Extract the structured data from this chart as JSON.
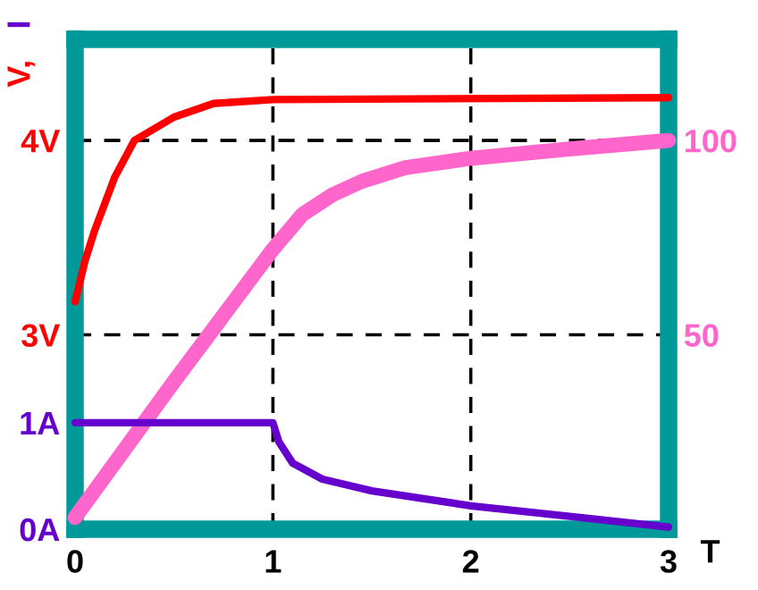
{
  "chart_data": {
    "type": "line",
    "xlabel": "T",
    "ylabel": "V,",
    "y3label": "I",
    "xlim": [
      0,
      3
    ],
    "xticks": [
      0,
      1,
      2,
      3
    ],
    "ylim": [
      2.0,
      4.52
    ],
    "yticks": [
      {
        "value": 3,
        "label": "3V"
      },
      {
        "value": 4,
        "label": "4V"
      }
    ],
    "y2lim": [
      0,
      126
    ],
    "y2ticks": [
      50,
      100
    ],
    "y3lim": [
      0,
      4.6
    ],
    "y3ticks": [
      {
        "value": 0,
        "label": "0A"
      },
      {
        "value": 1,
        "label": "1A"
      }
    ],
    "grid": true,
    "line_style": "solid",
    "legend": false,
    "series": [
      {
        "color": "#ff0000",
        "x": [
          0,
          0.05,
          0.1,
          0.2,
          0.3,
          0.5,
          0.7,
          1,
          3
        ],
        "values": [
          3.17,
          3.38,
          3.54,
          3.81,
          4.0,
          4.12,
          4.19,
          4.21,
          4.22
        ]
      },
      {
        "color": "#ff66cc",
        "axis": "y2",
        "x": [
          0,
          0.5,
          1,
          1.15,
          1.3,
          1.45,
          1.67,
          2,
          2.5,
          3
        ],
        "values": [
          3,
          38,
          72,
          81,
          86,
          89.5,
          93,
          95.4,
          97.8,
          100
        ]
      },
      {
        "color": "#6600cc",
        "axis": "y3",
        "x": [
          0,
          1,
          1.03,
          1.1,
          1.25,
          1.5,
          2,
          2.5,
          3
        ],
        "values": [
          1,
          1,
          0.82,
          0.62,
          0.47,
          0.36,
          0.22,
          0.12,
          0.02
        ]
      }
    ]
  }
}
